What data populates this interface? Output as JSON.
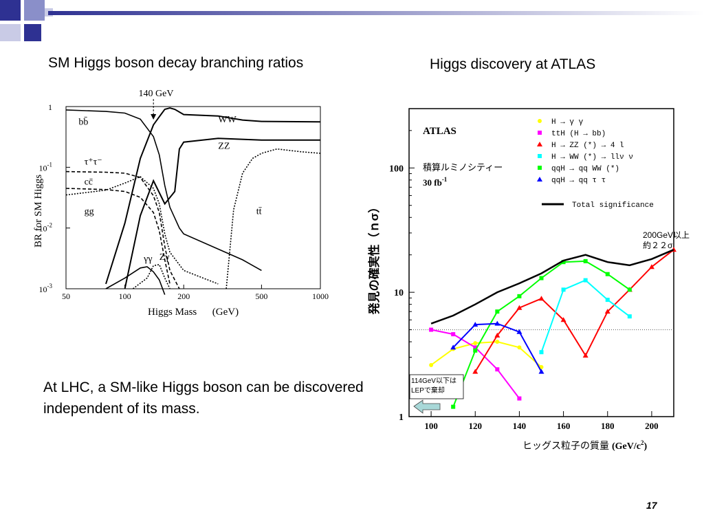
{
  "slide": {
    "left_title": "SM Higgs boson decay branching ratios",
    "right_title": "Higgs discovery at ATLAS",
    "body": "At LHC, a SM-like Higgs boson can be discovered independent of its mass.",
    "page_number": "17",
    "accent_color": "#2e3192"
  },
  "chart_data": [
    {
      "type": "line",
      "title": "",
      "xlabel": "Higgs Mass      (GeV)",
      "ylabel": "BR  for SM  Higgs",
      "xscale": "log",
      "yscale": "log",
      "xlim": [
        50,
        1000
      ],
      "ylim": [
        0.001,
        1
      ],
      "xticks": [
        {
          "v": 50,
          "label": "50"
        },
        {
          "v": 100,
          "label": "100"
        },
        {
          "v": 200,
          "label": "200"
        },
        {
          "v": 500,
          "label": "500"
        },
        {
          "v": 1000,
          "label": "1000"
        }
      ],
      "yticks": [
        {
          "v": 1,
          "label": "1",
          "exp": ""
        },
        {
          "v": 0.1,
          "label": "10",
          "exp": "-1"
        },
        {
          "v": 0.01,
          "label": "10",
          "exp": "-2"
        },
        {
          "v": 0.001,
          "label": "10",
          "exp": "-3"
        }
      ],
      "annotation": "140 GeV",
      "annotation_x": 140,
      "series": [
        {
          "name": "bb̄",
          "style": "solid",
          "points": [
            [
              50,
              0.88
            ],
            [
              80,
              0.83
            ],
            [
              100,
              0.78
            ],
            [
              120,
              0.62
            ],
            [
              140,
              0.32
            ],
            [
              150,
              0.16
            ],
            [
              160,
              0.05
            ],
            [
              170,
              0.022
            ],
            [
              190,
              0.01
            ],
            [
              200,
              0.008
            ],
            [
              400,
              0.003
            ],
            [
              500,
              0.002
            ]
          ]
        },
        {
          "name": "WW",
          "style": "solid",
          "points": [
            [
              80,
              0.0012
            ],
            [
              100,
              0.012
            ],
            [
              120,
              0.14
            ],
            [
              140,
              0.5
            ],
            [
              150,
              0.68
            ],
            [
              160,
              0.9
            ],
            [
              170,
              0.95
            ],
            [
              180,
              0.9
            ],
            [
              200,
              0.74
            ],
            [
              300,
              0.7
            ],
            [
              400,
              0.6
            ],
            [
              500,
              0.57
            ],
            [
              1000,
              0.56
            ]
          ]
        },
        {
          "name": "ZZ",
          "style": "solid",
          "points": [
            [
              100,
              0.001
            ],
            [
              120,
              0.016
            ],
            [
              140,
              0.06
            ],
            [
              160,
              0.025
            ],
            [
              180,
              0.04
            ],
            [
              190,
              0.2
            ],
            [
              200,
              0.26
            ],
            [
              300,
              0.3
            ],
            [
              500,
              0.28
            ],
            [
              1000,
              0.28
            ]
          ]
        },
        {
          "name": "τ⁺τ⁻",
          "style": "dashed",
          "points": [
            [
              50,
              0.085
            ],
            [
              80,
              0.083
            ],
            [
              100,
              0.08
            ],
            [
              120,
              0.068
            ],
            [
              140,
              0.034
            ],
            [
              150,
              0.018
            ],
            [
              160,
              0.005
            ],
            [
              170,
              0.002
            ],
            [
              190,
              0.001
            ]
          ]
        },
        {
          "name": "cc̄",
          "style": "dashed",
          "points": [
            [
              50,
              0.045
            ],
            [
              80,
              0.043
            ],
            [
              100,
              0.04
            ],
            [
              120,
              0.032
            ],
            [
              140,
              0.018
            ],
            [
              150,
              0.009
            ],
            [
              160,
              0.003
            ],
            [
              170,
              0.0012
            ]
          ]
        },
        {
          "name": "gg",
          "style": "dotted",
          "points": [
            [
              50,
              0.035
            ],
            [
              80,
              0.042
            ],
            [
              100,
              0.055
            ],
            [
              120,
              0.07
            ],
            [
              140,
              0.045
            ],
            [
              150,
              0.025
            ],
            [
              160,
              0.008
            ],
            [
              170,
              0.004
            ],
            [
              200,
              0.002
            ],
            [
              300,
              0.0012
            ]
          ]
        },
        {
          "name": "γγ",
          "style": "solid",
          "points": [
            [
              80,
              0.001
            ],
            [
              100,
              0.0015
            ],
            [
              120,
              0.0022
            ],
            [
              130,
              0.0023
            ],
            [
              140,
              0.0019
            ],
            [
              150,
              0.0014
            ],
            [
              160,
              0.0008
            ]
          ]
        },
        {
          "name": "Zγ",
          "style": "dotted",
          "points": [
            [
              110,
              0.001
            ],
            [
              130,
              0.0015
            ],
            [
              140,
              0.0024
            ],
            [
              150,
              0.0025
            ],
            [
              160,
              0.0015
            ],
            [
              170,
              0.001
            ]
          ]
        },
        {
          "name": "tt̄",
          "style": "dotted",
          "points": [
            [
              330,
              0.001
            ],
            [
              360,
              0.02
            ],
            [
              400,
              0.08
            ],
            [
              450,
              0.14
            ],
            [
              500,
              0.17
            ],
            [
              600,
              0.2
            ],
            [
              800,
              0.18
            ],
            [
              1000,
              0.17
            ]
          ]
        }
      ],
      "label_pos": [
        {
          "name": "bb̄",
          "x": 58,
          "y": 0.5
        },
        {
          "name": "WW",
          "x": 300,
          "y": 0.55
        },
        {
          "name": "ZZ",
          "x": 300,
          "y": 0.2
        },
        {
          "name": "τ⁺τ⁻",
          "x": 62,
          "y": 0.11
        },
        {
          "name": "cc̄",
          "x": 62,
          "y": 0.052
        },
        {
          "name": "gg",
          "x": 62,
          "y": 0.017
        },
        {
          "name": "γγ",
          "x": 125,
          "y": 0.0028
        },
        {
          "name": "Zγ",
          "x": 150,
          "y": 0.003
        },
        {
          "name": "tt̄",
          "x": 470,
          "y": 0.017
        }
      ]
    },
    {
      "type": "line",
      "title": "ATLAS",
      "subtitle_line1": "積算ルミノシティー",
      "subtitle_line2": "30 fb",
      "subtitle_sup": "-1",
      "xlabel": "ヒッグス粒子の質量",
      "xlabel_unit": "(GeV/c",
      "xlabel_unit_sup": "2",
      "xlabel_unit_end": ")",
      "ylabel": "発見の確実性（ｎσ）",
      "yscale": "log",
      "xlim": [
        90,
        210
      ],
      "ylim": [
        1,
        300
      ],
      "xticks": [
        100,
        120,
        140,
        160,
        180,
        200
      ],
      "yticks": [
        1,
        10,
        100
      ],
      "reference_line": 5,
      "annotations": {
        "excluded": "114GeV以下は\nLEPで棄却",
        "at200_line1": "200GeV以上",
        "at200_line2": "約２２σ"
      },
      "series": [
        {
          "name": "H → γ γ",
          "label_suffix": "",
          "color": "#ffff00",
          "marker": "circle",
          "points": [
            [
              100,
              2.6
            ],
            [
              110,
              3.5
            ],
            [
              120,
              3.9
            ],
            [
              130,
              4.0
            ],
            [
              140,
              3.6
            ],
            [
              150,
              2.5
            ]
          ]
        },
        {
          "name": "ttH (H → bb)",
          "label_suffix": "",
          "color": "#ff00ff",
          "marker": "square",
          "points": [
            [
              100,
              5.0
            ],
            [
              110,
              4.6
            ],
            [
              120,
              3.6
            ],
            [
              130,
              2.4
            ],
            [
              140,
              1.4
            ]
          ]
        },
        {
          "name": "H → ZZ",
          "label_suffix": "(*) → 4 l",
          "color": "#ff0000",
          "marker": "triangle",
          "points": [
            [
              120,
              2.3
            ],
            [
              130,
              4.5
            ],
            [
              140,
              7.5
            ],
            [
              150,
              8.9
            ],
            [
              160,
              6.0
            ],
            [
              170,
              3.1
            ],
            [
              180,
              7.0
            ],
            [
              190,
              10.5
            ],
            [
              200,
              16.0
            ],
            [
              210,
              22.0
            ]
          ]
        },
        {
          "name": "H → WW",
          "label_suffix": "(*) → llν ν",
          "color": "#00ffff",
          "marker": "square",
          "points": [
            [
              150,
              3.3
            ],
            [
              160,
              10.5
            ],
            [
              170,
              12.5
            ],
            [
              180,
              8.7
            ],
            [
              190,
              6.4
            ]
          ]
        },
        {
          "name": "qqH → qq WW",
          "label_suffix": "(*)",
          "color": "#00ff00",
          "marker": "square",
          "points": [
            [
              110,
              1.2
            ],
            [
              120,
              3.4
            ],
            [
              130,
              7.0
            ],
            [
              140,
              9.3
            ],
            [
              150,
              13.0
            ],
            [
              160,
              17.5
            ],
            [
              170,
              17.8
            ],
            [
              180,
              14.0
            ],
            [
              190,
              10.5
            ]
          ]
        },
        {
          "name": "qqH → qq τ τ",
          "label_suffix": "",
          "color": "#0000ff",
          "marker": "triangle",
          "points": [
            [
              110,
              3.6
            ],
            [
              120,
              5.5
            ],
            [
              130,
              5.6
            ],
            [
              140,
              4.8
            ],
            [
              150,
              2.3
            ]
          ]
        },
        {
          "name": "Total significance",
          "label_suffix": "",
          "color": "#000000",
          "marker": "none",
          "points": [
            [
              100,
              5.6
            ],
            [
              110,
              6.5
            ],
            [
              120,
              8.0
            ],
            [
              130,
              10.0
            ],
            [
              140,
              11.8
            ],
            [
              150,
              14.2
            ],
            [
              160,
              18.0
            ],
            [
              170,
              20.0
            ],
            [
              180,
              17.5
            ],
            [
              190,
              16.5
            ],
            [
              200,
              18.5
            ],
            [
              210,
              22.0
            ]
          ]
        }
      ]
    }
  ]
}
